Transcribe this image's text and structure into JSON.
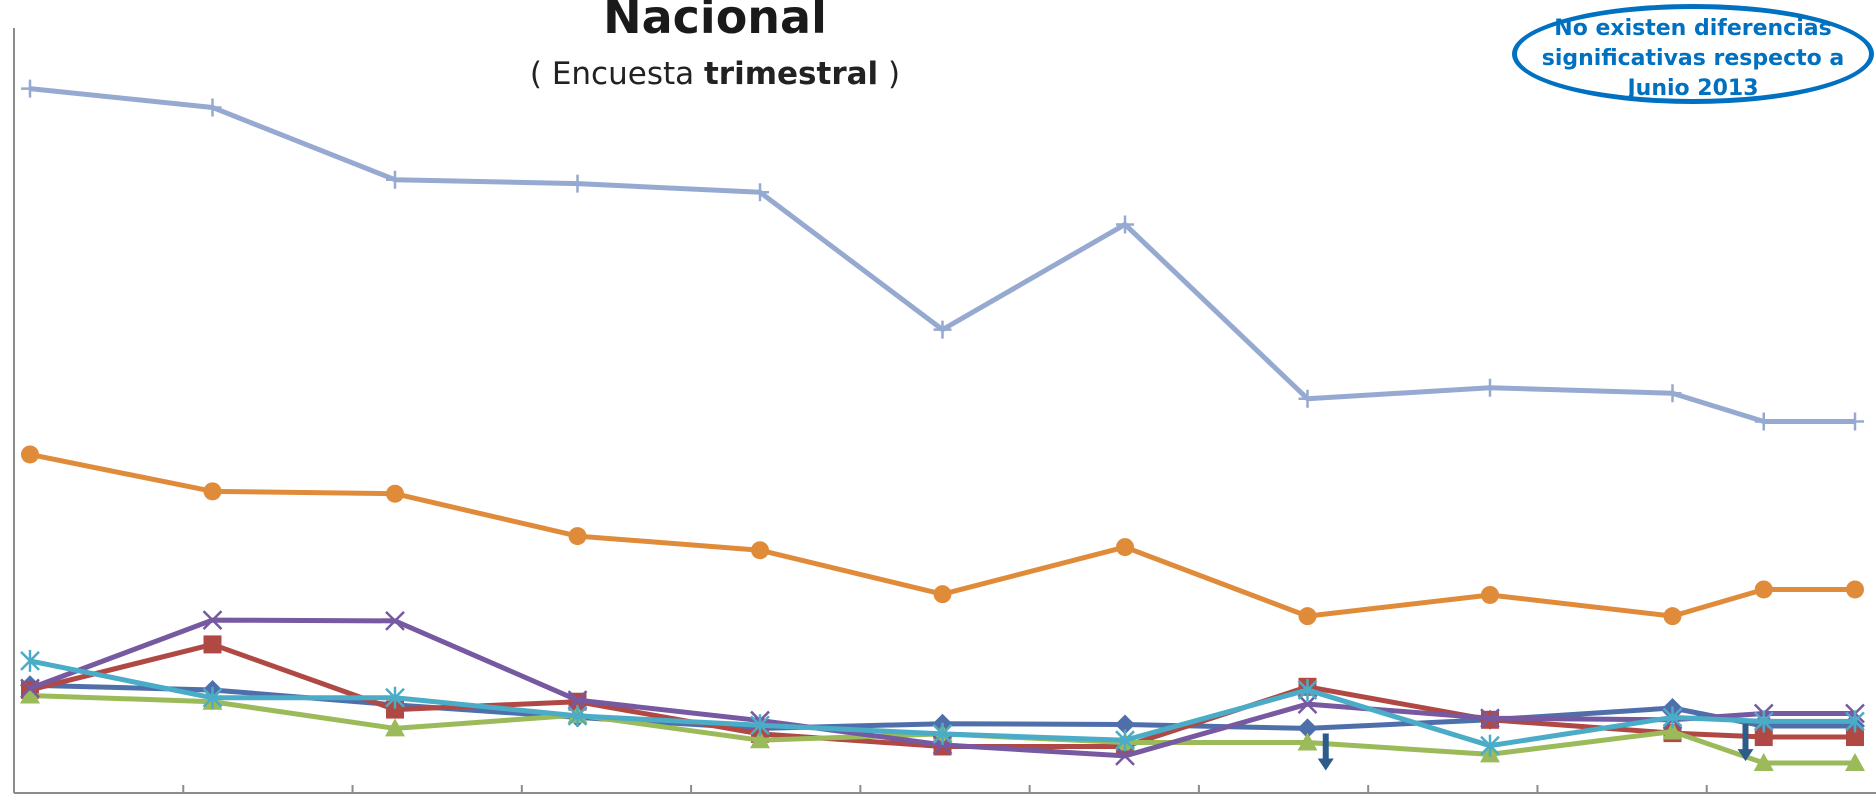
{
  "chart_data": {
    "type": "line",
    "title": "Nacional",
    "subtitle_prefix": "( Encuesta ",
    "subtitle_bold": "trimestral",
    "subtitle_suffix": " )",
    "note": "No existen diferencias significativas respecto a Junio 2013",
    "x": [
      0,
      1,
      2,
      3,
      4,
      5,
      6,
      7,
      8,
      9,
      9.5,
      10
    ],
    "xlim": [
      0,
      10
    ],
    "ylim": [
      0,
      100
    ],
    "grid": false,
    "legend": "none",
    "series": [
      {
        "color": "#95a9d1",
        "marker": "plus",
        "values": [
          89.6,
          87.2,
          78.0,
          77.5,
          76.4,
          58.9,
          72.3,
          50.1,
          51.5,
          50.8,
          47.2,
          47.2
        ]
      },
      {
        "color": "#e08b3a",
        "marker": "circle",
        "values": [
          43.0,
          38.3,
          38.0,
          32.6,
          30.8,
          25.2,
          31.2,
          22.4,
          25.1,
          22.4,
          25.8,
          25.8
        ]
      },
      {
        "color": "#4f6fab",
        "marker": "diamond",
        "values": [
          13.6,
          13.0,
          11.1,
          9.5,
          8.1,
          8.7,
          8.6,
          8.1,
          9.2,
          10.7,
          8.4,
          8.4
        ]
      },
      {
        "color": "#b04844",
        "marker": "square",
        "values": [
          13.0,
          18.8,
          10.5,
          11.5,
          7.4,
          5.8,
          5.8,
          13.4,
          9.2,
          7.5,
          7.0,
          7.0
        ]
      },
      {
        "color": "#9bba59",
        "marker": "triangle",
        "values": [
          12.3,
          11.5,
          8.1,
          9.8,
          6.6,
          7.4,
          6.3,
          6.3,
          4.8,
          7.7,
          3.7,
          3.7
        ]
      },
      {
        "color": "#7659a0",
        "marker": "x",
        "values": [
          13.2,
          21.9,
          21.8,
          11.7,
          9.1,
          6.0,
          4.6,
          11.2,
          9.4,
          9.2,
          10.0,
          10.0
        ]
      },
      {
        "color": "#4aacc6",
        "marker": "star",
        "values": [
          16.7,
          12.0,
          12.0,
          9.7,
          8.5,
          7.4,
          6.6,
          13.0,
          5.9,
          9.5,
          9.0,
          9.0
        ]
      }
    ],
    "arrows": [
      {
        "x": 7.1,
        "y": 6.3,
        "color": "#2e5c8a"
      },
      {
        "x": 9.4,
        "y": 7.5,
        "color": "#2e5c8a"
      }
    ]
  }
}
